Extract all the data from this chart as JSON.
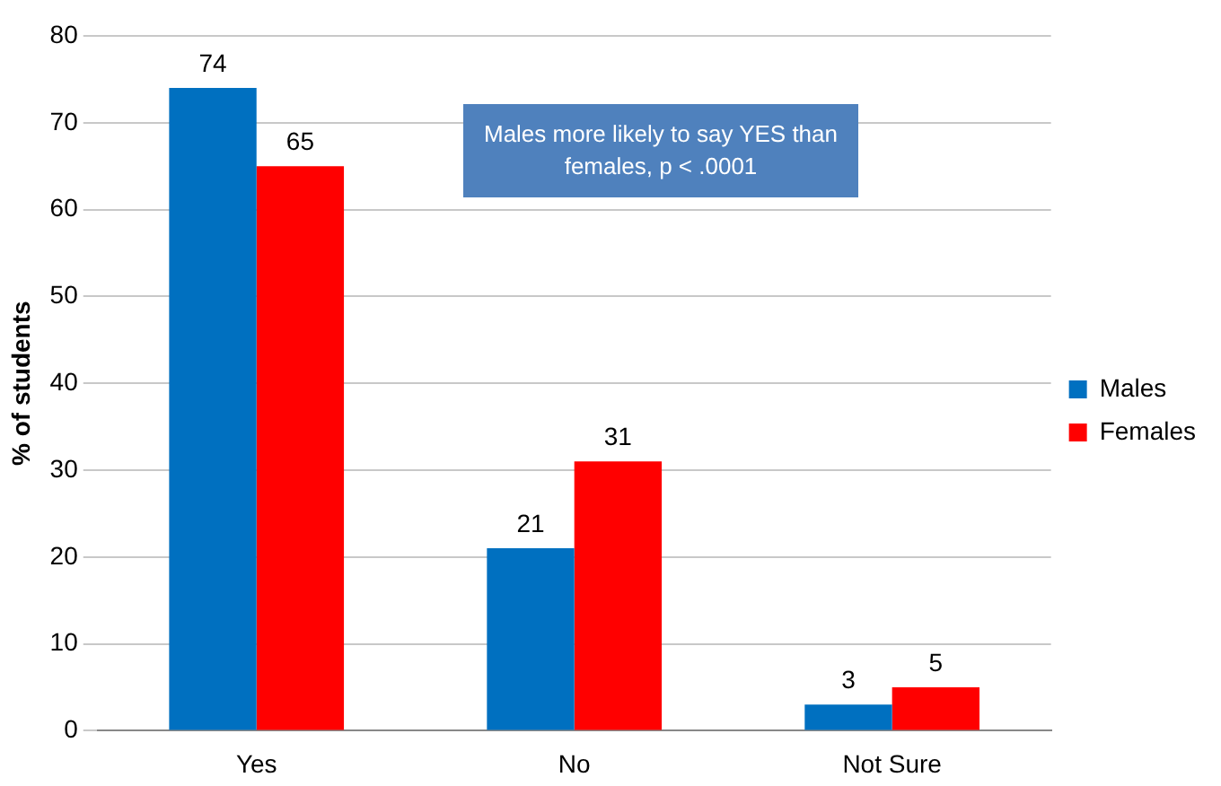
{
  "chart_data": {
    "type": "bar",
    "ylabel": "% of students",
    "categories": [
      "Yes",
      "No",
      "Not Sure"
    ],
    "series": [
      {
        "name": "Males",
        "color": "#0070c0",
        "values": [
          74,
          21,
          3
        ]
      },
      {
        "name": "Females",
        "color": "#ff0000",
        "values": [
          65,
          31,
          5
        ]
      }
    ],
    "ylim": [
      0,
      80
    ],
    "yticks": [
      0,
      10,
      20,
      30,
      40,
      50,
      60,
      70,
      80
    ],
    "grid": "y",
    "legend": "right",
    "data_labels": true,
    "annotations": [
      "Males more likely to say YES than females, p < .0001"
    ]
  }
}
